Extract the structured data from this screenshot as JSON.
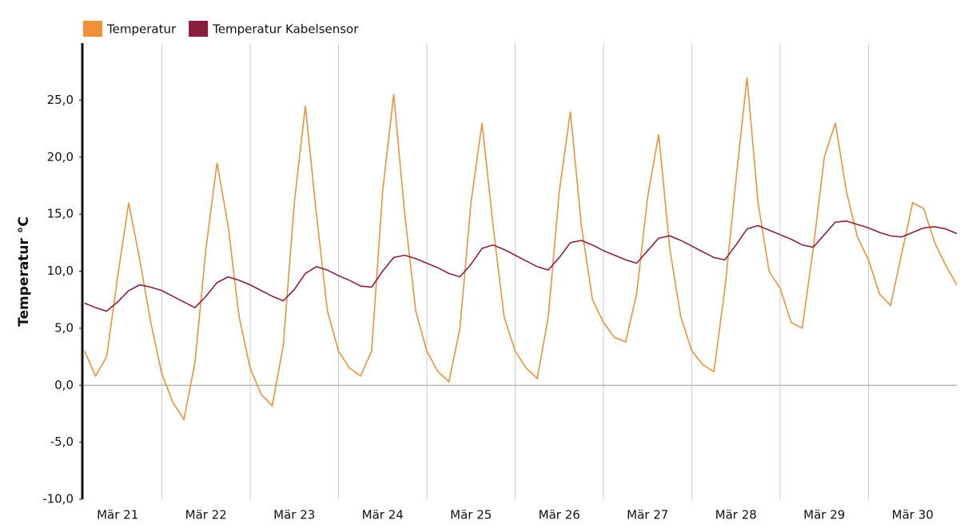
{
  "chart_data": {
    "type": "line",
    "y_label": "Temperatur °C",
    "x": [
      21.125,
      21.25,
      21.375,
      21.5,
      21.625,
      21.75,
      21.875,
      22,
      22.125,
      22.25,
      22.375,
      22.5,
      22.625,
      22.75,
      22.875,
      23,
      23.125,
      23.25,
      23.375,
      23.5,
      23.625,
      23.75,
      23.875,
      24,
      24.125,
      24.25,
      24.375,
      24.5,
      24.625,
      24.75,
      24.875,
      25,
      25.125,
      25.25,
      25.375,
      25.5,
      25.625,
      25.75,
      25.875,
      26,
      26.125,
      26.25,
      26.375,
      26.5,
      26.625,
      26.75,
      26.875,
      27,
      27.125,
      27.25,
      27.375,
      27.5,
      27.625,
      27.75,
      27.875,
      28,
      28.125,
      28.25,
      28.375,
      28.5,
      28.625,
      28.75,
      28.875,
      29,
      29.125,
      29.25,
      29.375,
      29.5,
      29.625,
      29.75,
      29.875,
      30,
      30.125,
      30.25,
      30.375,
      30.5,
      30.625,
      30.75,
      30.875,
      31
    ],
    "series": [
      {
        "name": "Temperatur",
        "color": "#f0913a",
        "values": [
          3.0,
          0.8,
          2.5,
          9.5,
          16.0,
          11.0,
          5.5,
          1.0,
          -1.5,
          -3.0,
          2.0,
          12.0,
          19.5,
          14.0,
          6.0,
          1.5,
          -0.8,
          -1.8,
          3.5,
          16.0,
          24.5,
          15.0,
          6.5,
          3.0,
          1.5,
          0.8,
          3.0,
          17.0,
          25.5,
          15.0,
          6.5,
          3.0,
          1.2,
          0.3,
          5.0,
          16.0,
          23.0,
          14.0,
          6.0,
          3.0,
          1.5,
          0.6,
          6.0,
          17.0,
          24.0,
          14.0,
          7.5,
          5.5,
          4.2,
          3.8,
          8.0,
          16.5,
          22.0,
          12.0,
          6.0,
          3.0,
          1.8,
          1.2,
          8.5,
          18.0,
          27.0,
          16.0,
          10.0,
          8.5,
          5.5,
          5.0,
          12.0,
          20.0,
          23.0,
          17.0,
          13.0,
          11.0,
          8.0,
          7.0,
          11.5,
          16.0,
          15.5,
          12.5,
          10.5,
          8.8
        ]
      },
      {
        "name": "Temperatur Kabelsensor",
        "color": "#8b1f3f",
        "values": [
          7.2,
          6.8,
          6.5,
          7.3,
          8.3,
          8.8,
          8.6,
          8.3,
          7.8,
          7.3,
          6.8,
          7.8,
          9.0,
          9.5,
          9.2,
          8.8,
          8.3,
          7.8,
          7.4,
          8.4,
          9.8,
          10.4,
          10.1,
          9.6,
          9.2,
          8.7,
          8.6,
          10.0,
          11.2,
          11.4,
          11.1,
          10.7,
          10.3,
          9.8,
          9.5,
          10.6,
          12.0,
          12.3,
          11.9,
          11.4,
          10.9,
          10.4,
          10.1,
          11.2,
          12.5,
          12.7,
          12.3,
          11.8,
          11.4,
          11.0,
          10.7,
          11.8,
          12.9,
          13.1,
          12.7,
          12.2,
          11.7,
          11.2,
          11.0,
          12.3,
          13.7,
          14.0,
          13.6,
          13.2,
          12.8,
          12.3,
          12.1,
          13.2,
          14.3,
          14.4,
          14.1,
          13.8,
          13.4,
          13.1,
          13.0,
          13.4,
          13.8,
          13.9,
          13.7,
          13.3
        ]
      }
    ],
    "xlim": [
      21.1,
      31.0
    ],
    "xticks": [
      {
        "value": 21.5,
        "label": "Mär 21"
      },
      {
        "value": 22.5,
        "label": "Mär 22"
      },
      {
        "value": 23.5,
        "label": "Mär 23"
      },
      {
        "value": 24.5,
        "label": "Mär 24"
      },
      {
        "value": 25.5,
        "label": "Mär 25"
      },
      {
        "value": 26.5,
        "label": "Mär 26"
      },
      {
        "value": 27.5,
        "label": "Mär 27"
      },
      {
        "value": 28.5,
        "label": "Mär 28"
      },
      {
        "value": 29.5,
        "label": "Mär 29"
      },
      {
        "value": 30.5,
        "label": "Mär 30"
      }
    ],
    "ylim": [
      -10,
      30
    ],
    "yticks": [
      {
        "value": -10,
        "label": "-10,0"
      },
      {
        "value": -5,
        "label": "-5,0"
      },
      {
        "value": 0,
        "label": "0,0"
      },
      {
        "value": 5,
        "label": "5,0"
      },
      {
        "value": 10,
        "label": "10,0"
      },
      {
        "value": 15,
        "label": "15,0"
      },
      {
        "value": 20,
        "label": "20,0"
      },
      {
        "value": 25,
        "label": "25,0"
      }
    ],
    "legend": "top-left"
  }
}
